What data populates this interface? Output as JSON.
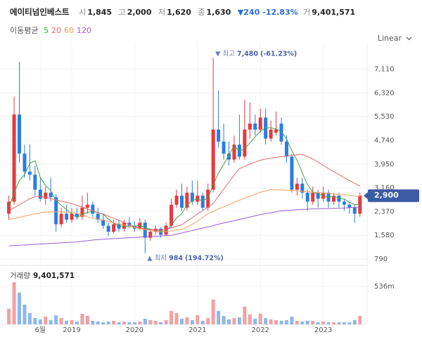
{
  "header": {
    "name": "에이티넘인베스트",
    "fields": [
      {
        "label": "시",
        "value": "1,845"
      },
      {
        "label": "고",
        "value": "2,000"
      },
      {
        "label": "저",
        "value": "1,620"
      },
      {
        "label": "종",
        "value": "1,630"
      }
    ],
    "change": "▼240",
    "change_pct": "-12.83%",
    "volume": {
      "label": "거",
      "value": "9,401,571"
    }
  },
  "ma_legend": {
    "title": "이동평균"
  },
  "chart_data": {
    "type": "candlestick",
    "scale_button": "Linear",
    "categories": [
      null,
      null,
      null,
      null,
      null,
      null,
      "6월",
      null,
      null,
      null,
      null,
      null,
      "2019",
      null,
      null,
      null,
      null,
      null,
      null,
      null,
      null,
      null,
      null,
      null,
      "2020",
      null,
      null,
      null,
      null,
      null,
      null,
      null,
      null,
      null,
      null,
      null,
      "2021",
      null,
      null,
      null,
      null,
      null,
      null,
      null,
      null,
      null,
      null,
      null,
      "2022",
      null,
      null,
      null,
      null,
      null,
      null,
      null,
      null,
      null,
      null,
      null,
      "2023",
      null,
      null,
      null,
      null,
      null,
      null,
      null
    ],
    "open": [
      2300,
      2700,
      5600,
      4300,
      3700,
      3600,
      3100,
      2800,
      3000,
      2850,
      1950,
      2300,
      2100,
      2300,
      2200,
      2500,
      2600,
      2300,
      2100,
      1900,
      1700,
      1950,
      1800,
      2000,
      1900,
      1800,
      2000,
      1500,
      1700,
      1800,
      1600,
      1900,
      2600,
      2900,
      2500,
      3000,
      2700,
      2900,
      2500,
      3100,
      5100,
      4700,
      4300,
      4100,
      4600,
      4200,
      5100,
      5300,
      5100,
      5500,
      4800,
      5000,
      5300,
      4700,
      4200,
      3100,
      3300,
      3000,
      2700,
      3000,
      2800,
      3000,
      2700,
      2900,
      2700,
      2600,
      2500,
      2300
    ],
    "high": [
      2900,
      6200,
      7350,
      4600,
      4600,
      3900,
      3500,
      3200,
      3500,
      2950,
      2500,
      2600,
      2500,
      2500,
      2900,
      3000,
      2700,
      2500,
      2300,
      2000,
      2100,
      2100,
      2100,
      2200,
      2050,
      2150,
      2100,
      1800,
      1900,
      1850,
      2000,
      2800,
      3100,
      3300,
      3200,
      3400,
      3400,
      3000,
      3300,
      7480,
      6400,
      5300,
      4700,
      4900,
      5600,
      6100,
      6000,
      5600,
      5800,
      5800,
      5400,
      5700,
      5500,
      4900,
      4300,
      3500,
      3500,
      3100,
      3200,
      3100,
      3200,
      3100,
      3000,
      3000,
      2800,
      2700,
      2600,
      3000
    ],
    "low": [
      2100,
      2600,
      4000,
      3500,
      3400,
      2900,
      2700,
      2600,
      2700,
      1700,
      1850,
      2000,
      2000,
      2100,
      2100,
      2300,
      2200,
      2000,
      1800,
      1550,
      1650,
      1700,
      1700,
      1800,
      1700,
      1750,
      984,
      1400,
      1600,
      1500,
      1550,
      1850,
      2500,
      2400,
      2400,
      2600,
      2600,
      2400,
      2400,
      3000,
      4500,
      4100,
      3900,
      4000,
      4100,
      4100,
      4800,
      4900,
      5000,
      4600,
      4700,
      4900,
      4600,
      4000,
      3000,
      2900,
      2800,
      2400,
      2600,
      2500,
      2700,
      2500,
      2600,
      2500,
      2400,
      2300,
      2000,
      2200
    ],
    "close": [
      2700,
      5600,
      4300,
      3700,
      3600,
      3100,
      2800,
      3000,
      2850,
      1950,
      2300,
      2100,
      2300,
      2200,
      2500,
      2600,
      2300,
      2100,
      1900,
      1700,
      1950,
      1800,
      2000,
      1900,
      1800,
      2000,
      1500,
      1700,
      1800,
      1600,
      1900,
      2600,
      2900,
      2500,
      3000,
      2700,
      2900,
      2500,
      3100,
      5100,
      4700,
      4300,
      4100,
      4600,
      4200,
      5100,
      5300,
      5100,
      5500,
      4800,
      5100,
      5100,
      4700,
      4200,
      3100,
      3300,
      3000,
      2700,
      3000,
      2800,
      3000,
      2700,
      2900,
      2700,
      2600,
      2500,
      2300,
      2900
    ],
    "up_color": "#e8383d",
    "down_color": "#2a7de1",
    "ylim": [
      650,
      8010
    ],
    "yticks": [
      {
        "value": 790,
        "label": "790"
      },
      {
        "value": 1580,
        "label": "1,580"
      },
      {
        "value": 2370,
        "label": "2,370"
      },
      {
        "value": 3160,
        "label": "3,160"
      },
      {
        "value": 3950,
        "label": "3,950"
      },
      {
        "value": 4740,
        "label": "4,740"
      },
      {
        "value": 5530,
        "label": "5,530"
      },
      {
        "value": 6320,
        "label": "6,320"
      },
      {
        "value": 7110,
        "label": "7,110"
      }
    ],
    "grid": true,
    "current": {
      "value": 2900,
      "label": "2,900",
      "color": "#3b5ba5"
    },
    "annotations": [
      {
        "text": "▼ 최고",
        "value": {
          "value": 7480,
          "label": "7,480"
        },
        "change": "(-61.23%)",
        "at": "high"
      },
      {
        "text": "▲ 최저",
        "value": {
          "value": 984,
          "label": "984"
        },
        "change": "(194.72%)",
        "at": "low"
      }
    ],
    "ma": [
      {
        "name": "5",
        "color": "#43a047",
        "values": [
          2500,
          3000,
          3400,
          3600,
          3980,
          4060,
          3500,
          3240,
          3070,
          2740,
          2580,
          2440,
          2300,
          2170,
          2280,
          2340,
          2380,
          2340,
          2280,
          2120,
          1990,
          1890,
          1870,
          1870,
          1890,
          1900,
          1840,
          1780,
          1760,
          1720,
          1700,
          1920,
          2160,
          2300,
          2580,
          2740,
          2800,
          2720,
          2840,
          3260,
          3660,
          3940,
          4260,
          4560,
          4380,
          4460,
          4660,
          4860,
          5040,
          5160,
          5160,
          5120,
          5040,
          4780,
          4400,
          4080,
          3660,
          3260,
          3020,
          2960,
          2900,
          2840,
          2880,
          2820,
          2780,
          2680,
          2600,
          2600
        ]
      },
      {
        "name": "20",
        "color": "#e8676b",
        "values": [
          2400,
          2500,
          2600,
          2700,
          2800,
          2870,
          2870,
          2850,
          2800,
          2760,
          2720,
          2680,
          2640,
          2580,
          2520,
          2460,
          2400,
          2340,
          2290,
          2220,
          2150,
          2080,
          2010,
          1940,
          1880,
          1820,
          1790,
          1770,
          1760,
          1750,
          1780,
          1830,
          1880,
          1935,
          2050,
          2170,
          2290,
          2410,
          2520,
          2640,
          2880,
          3120,
          3350,
          3580,
          3800,
          3880,
          3950,
          4020,
          4080,
          4120,
          4150,
          4170,
          4200,
          4220,
          4240,
          4260,
          4270,
          4200,
          4120,
          4020,
          3910,
          3800,
          3700,
          3600,
          3500,
          3400,
          3310,
          3220
        ]
      },
      {
        "name": "60",
        "color": "#f5a05a",
        "values": [
          2100,
          2140,
          2180,
          2220,
          2260,
          2300,
          2330,
          2350,
          2360,
          2360,
          2360,
          2350,
          2350,
          2300,
          2250,
          2200,
          2160,
          2120,
          2080,
          2040,
          2000,
          1960,
          1920,
          1880,
          1840,
          1800,
          1770,
          1740,
          1700,
          1700,
          1710,
          1730,
          1760,
          1780,
          1850,
          1950,
          2050,
          2180,
          2300,
          2380,
          2460,
          2530,
          2600,
          2680,
          2750,
          2820,
          2890,
          2950,
          3010,
          3060,
          3100,
          3100,
          3090,
          3080,
          3070,
          3060,
          3050,
          3040,
          3020,
          3000,
          2990,
          2980,
          2960,
          2950,
          2930,
          2910,
          2890,
          2870
        ]
      },
      {
        "name": "120",
        "color": "#9a5bd6",
        "values": [
          1230,
          1240,
          1250,
          1260,
          1270,
          1280,
          1290,
          1300,
          1310,
          1320,
          1330,
          1340,
          1350,
          1360,
          1380,
          1400,
          1420,
          1440,
          1450,
          1460,
          1470,
          1480,
          1490,
          1500,
          1510,
          1520,
          1530,
          1540,
          1550,
          1560,
          1570,
          1580,
          1620,
          1660,
          1700,
          1740,
          1780,
          1820,
          1860,
          1900,
          1950,
          1990,
          2030,
          2070,
          2110,
          2150,
          2190,
          2230,
          2270,
          2300,
          2330,
          2360,
          2400,
          2410,
          2420,
          2430,
          2440,
          2450,
          2460,
          2460,
          2470,
          2470,
          2480,
          2480,
          2490,
          2500,
          2510,
          2520
        ]
      }
    ],
    "volume": {
      "title": "거래량",
      "total": {
        "value": 9401571,
        "label": "9,401,571"
      },
      "up_color": "#f2a0a2",
      "down_color": "#8db8ec",
      "values": [
        220000000,
        660000000,
        450000000,
        280000000,
        160000000,
        90000000,
        70000000,
        110000000,
        60000000,
        130000000,
        90000000,
        50000000,
        60000000,
        40000000,
        150000000,
        120000000,
        50000000,
        40000000,
        30000000,
        40000000,
        50000000,
        30000000,
        40000000,
        30000000,
        30000000,
        40000000,
        80000000,
        60000000,
        50000000,
        30000000,
        60000000,
        190000000,
        160000000,
        80000000,
        100000000,
        60000000,
        130000000,
        50000000,
        90000000,
        350000000,
        190000000,
        120000000,
        70000000,
        90000000,
        100000000,
        250000000,
        140000000,
        80000000,
        150000000,
        90000000,
        70000000,
        60000000,
        50000000,
        60000000,
        110000000,
        50000000,
        40000000,
        50000000,
        50000000,
        30000000,
        40000000,
        30000000,
        30000000,
        30000000,
        30000000,
        30000000,
        60000000,
        120000000
      ],
      "ylim": [
        0,
        784000000
      ],
      "yticks": [
        {
          "value": 536000000,
          "label": "536m"
        }
      ]
    }
  }
}
